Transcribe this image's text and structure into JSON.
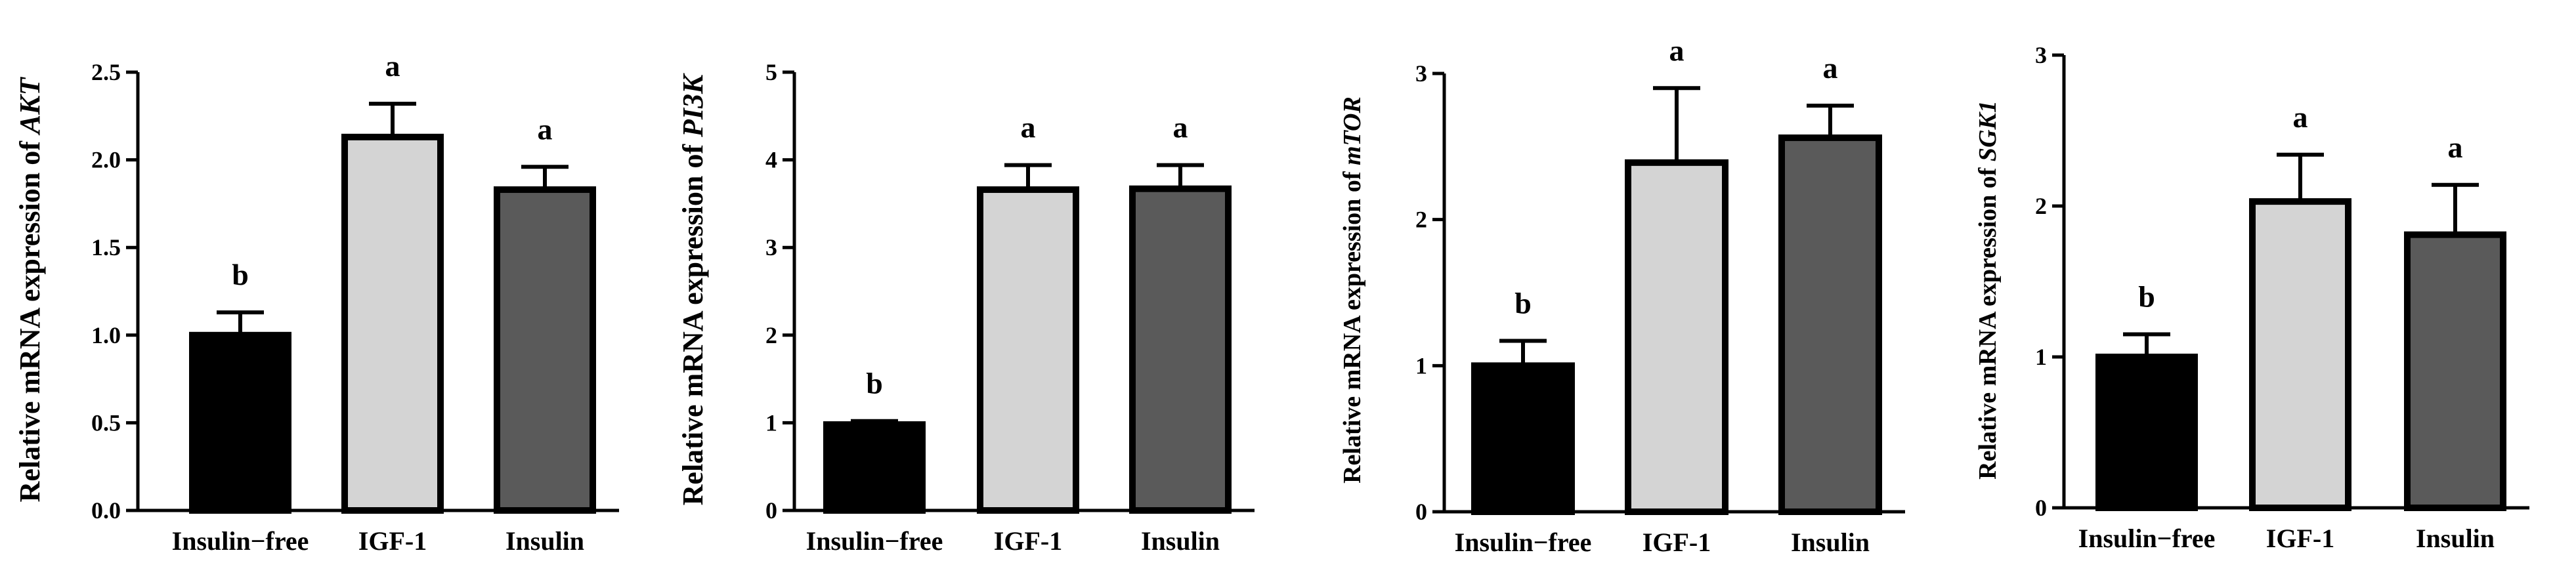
{
  "chart_data": [
    {
      "type": "bar",
      "ylabel_prefix": "Relative mRNA expression of ",
      "gene": "AKT",
      "categories": [
        "Insulin−free",
        "IGF-1",
        "Insulin"
      ],
      "values": [
        1.0,
        2.13,
        1.83
      ],
      "errors": [
        0.13,
        0.19,
        0.13
      ],
      "significance": [
        "b",
        "a",
        "a"
      ],
      "ylim": [
        0,
        2.5
      ],
      "yticks": [
        "0.0",
        "0.5",
        "1.0",
        "1.5",
        "2.0",
        "2.5"
      ],
      "bar_colors": [
        "#000000",
        "#d4d4d4",
        "#5a5a5a"
      ]
    },
    {
      "type": "bar",
      "ylabel_prefix": "Relative mRNA expression of ",
      "gene": "PI3K",
      "categories": [
        "Insulin−free",
        "IGF-1",
        "Insulin"
      ],
      "values": [
        0.98,
        3.66,
        3.67
      ],
      "errors": [
        0.04,
        0.28,
        0.27
      ],
      "significance": [
        "b",
        "a",
        "a"
      ],
      "ylim": [
        0,
        5
      ],
      "yticks": [
        "0",
        "1",
        "2",
        "3",
        "4",
        "5"
      ],
      "bar_colors": [
        "#000000",
        "#d4d4d4",
        "#5a5a5a"
      ]
    },
    {
      "type": "bar",
      "ylabel_prefix": "Relative mRNA expression of ",
      "gene": "mTOR",
      "categories": [
        "Insulin−free",
        "IGF-1",
        "Insulin"
      ],
      "values": [
        1.0,
        2.39,
        2.56
      ],
      "errors": [
        0.17,
        0.51,
        0.22
      ],
      "significance": [
        "b",
        "a",
        "a"
      ],
      "ylim": [
        0,
        3
      ],
      "yticks": [
        "0",
        "1",
        "2",
        "3"
      ],
      "bar_colors": [
        "#000000",
        "#d4d4d4",
        "#5a5a5a"
      ]
    },
    {
      "type": "bar",
      "ylabel_prefix": "Relative mRNA expression of ",
      "gene": "SGK1",
      "categories": [
        "Insulin−free",
        "IGF-1",
        "Insulin"
      ],
      "values": [
        1.0,
        2.03,
        1.81
      ],
      "errors": [
        0.15,
        0.31,
        0.33
      ],
      "significance": [
        "b",
        "a",
        "a"
      ],
      "ylim": [
        0,
        3
      ],
      "yticks": [
        "0",
        "1",
        "2",
        "3"
      ],
      "bar_colors": [
        "#000000",
        "#d4d4d4",
        "#5a5a5a"
      ]
    }
  ]
}
